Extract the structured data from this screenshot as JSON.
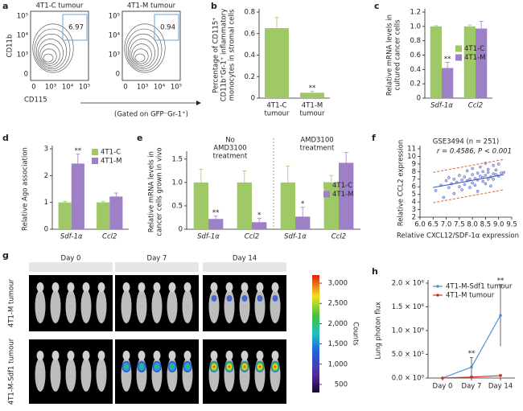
{
  "panel_labels": [
    "a",
    "b",
    "c",
    "d",
    "e",
    "f",
    "g",
    "h"
  ],
  "flow": {
    "titles": [
      "4T1-C tumour",
      "4T1-M tumour"
    ],
    "gates": [
      6.97,
      0.94
    ],
    "yticks": [
      "10⁵",
      "10⁴",
      "10³",
      "0"
    ],
    "xticks": [
      "0",
      "10³",
      "10⁴",
      "10⁵"
    ],
    "ylabel": "CD11b",
    "xlabel": "CD115",
    "note": "(Gated on GFP⁻Gr-1⁺)"
  },
  "imaging": {
    "days": [
      "Day 0",
      "Day 7",
      "Day 14"
    ],
    "rows": [
      "4T1-M tumour",
      "4T1-M-Sdf1 tumour"
    ],
    "colorbar": {
      "lim": [
        300,
        3200
      ],
      "ticks": [
        {
          "value": 3000,
          "label": "3,000"
        },
        {
          "value": 2500,
          "label": "2,500"
        },
        {
          "value": 2000,
          "label": "2,000"
        },
        {
          "value": 1500,
          "label": "1,500"
        },
        {
          "value": 1000,
          "label": "1,000"
        },
        500
      ],
      "label": "Counts"
    }
  },
  "chart_data": [
    {
      "type": "bar",
      "categories": [
        [
          "4T1-C",
          "tumour"
        ],
        [
          "4T1-M",
          "tumour"
        ]
      ],
      "ylabel": [
        "Percentage of CD115⁺",
        "CD11b⁺Gr-1⁺ inflammatory",
        "monocytes in stromal cells"
      ],
      "ylim": [
        0,
        0.8
      ],
      "yticks": [
        0,
        0.2,
        0.4,
        0.6,
        0.8
      ],
      "series": [
        {
          "color": "#9fc867",
          "values": [
            0.65,
            0.05
          ],
          "errors": [
            0.1,
            0.015
          ],
          "stars": [
            null,
            "**"
          ]
        }
      ]
    },
    {
      "type": "bar",
      "categories": [
        "Sdf-1α",
        "Ccl2"
      ],
      "category_style": "italic",
      "ylabel": [
        "Relative mRNA levels in",
        "cultured cancer cells"
      ],
      "ylim": [
        0,
        1.2
      ],
      "yticks": [
        0,
        0.2,
        0.4,
        0.6,
        0.8,
        {
          "value": 1,
          "label": "1.0"
        },
        1.2
      ],
      "legend": "center right",
      "series": [
        {
          "name": "4T1-C",
          "color": "#9fc867",
          "values": [
            1,
            1
          ],
          "errors": [
            0.01,
            0.02
          ]
        },
        {
          "name": "4T1-M",
          "color": "#9d80c6",
          "values": [
            0.42,
            0.97
          ],
          "errors": [
            0.08,
            0.1
          ],
          "stars": [
            "**",
            null
          ]
        }
      ]
    },
    {
      "type": "bar",
      "categories": [
        "Sdf-1α",
        "Ccl2"
      ],
      "category_style": "italic",
      "ylabel": [
        "Relative Ago association"
      ],
      "ylim": [
        0,
        3
      ],
      "yticks": [
        0,
        1,
        2,
        3
      ],
      "legend": "upper right",
      "series": [
        {
          "name": "4T1-C",
          "color": "#9fc867",
          "values": [
            1,
            1
          ],
          "errors": [
            0.04,
            0.03
          ]
        },
        {
          "name": "4T1-M",
          "color": "#9d80c6",
          "values": [
            2.45,
            1.22
          ],
          "errors": [
            0.35,
            0.13
          ],
          "stars": [
            "**",
            null
          ]
        }
      ]
    },
    {
      "type": "bar",
      "categories": [
        "Sdf-1α",
        "Ccl2",
        "Sdf-1α",
        "Ccl2"
      ],
      "category_style": "italic",
      "ylabel": [
        "Relative mRNA levels in",
        "cancer cells grown in vivo"
      ],
      "ylim": [
        0,
        1.6
      ],
      "yticks": [
        0,
        0.5,
        {
          "value": 1,
          "label": "1.0"
        },
        1.5
      ],
      "legend": "center right",
      "groups": [
        [
          "No",
          "AMD3100",
          "treatment"
        ],
        [
          "AMD3100",
          "treatment"
        ]
      ],
      "group_color": "#c0272d",
      "series": [
        {
          "name": "4T1-C",
          "color": "#9fc867",
          "values": [
            1,
            1,
            1,
            1
          ],
          "errors": [
            0.28,
            0.25,
            0.35,
            0.15
          ]
        },
        {
          "name": "4T1-M",
          "color": "#9d80c6",
          "values": [
            0.22,
            0.15,
            0.27,
            1.42
          ],
          "errors": [
            0.06,
            0.08,
            0.2,
            0.22
          ],
          "stars": [
            "**",
            "*",
            "*",
            null
          ]
        }
      ]
    },
    {
      "type": "scatter",
      "title": "GSE3494 (n = 251)",
      "annotation": "r = 0.4586, P < 0.001",
      "xlabel": "Relative CXCL12/SDF-1α expression",
      "ylabel": "Relative CCL2 expression",
      "tick_color": "#3a3aa0",
      "xlim": [
        6,
        9.5
      ],
      "ylim": [
        2,
        11
      ],
      "xticks": [
        {
          "value": 6,
          "label": "6.0"
        },
        6.5,
        {
          "value": 7,
          "label": "7.0"
        },
        7.5,
        {
          "value": 8,
          "label": "8.0"
        },
        8.5,
        {
          "value": 9,
          "label": "9.0"
        },
        9.5
      ],
      "yticks": [
        2,
        3,
        4,
        5,
        6,
        7,
        8,
        9,
        10,
        11
      ],
      "color": "#4a5ab0",
      "x": [
        6.6,
        6.8,
        6.9,
        7.0,
        7.1,
        7.1,
        7.2,
        7.3,
        7.3,
        7.4,
        7.5,
        7.5,
        7.6,
        7.6,
        7.7,
        7.7,
        7.8,
        7.8,
        7.9,
        7.9,
        8.0,
        8.0,
        8.0,
        8.1,
        8.1,
        8.2,
        8.2,
        8.2,
        8.3,
        8.3,
        8.4,
        8.4,
        8.4,
        8.5,
        8.5,
        8.5,
        8.6,
        8.6,
        8.6,
        8.7,
        8.7,
        8.8,
        8.8,
        8.8,
        8.9,
        8.9,
        9.0,
        9.0,
        9.1,
        9.2
      ],
      "y": [
        5.5,
        6.2,
        4.6,
        6.8,
        5.9,
        7.2,
        6.4,
        5.1,
        7.0,
        6.6,
        6.0,
        7.5,
        6.9,
        5.6,
        7.3,
        6.3,
        6.8,
        8.1,
        7.0,
        5.9,
        6.5,
        7.6,
        8.4,
        7.1,
        6.2,
        6.9,
        7.8,
        5.4,
        7.4,
        8.6,
        6.7,
        7.2,
        8.0,
        7.5,
        9.1,
        6.4,
        7.0,
        7.9,
        8.3,
        7.3,
        6.1,
        7.7,
        8.8,
        7.0,
        7.6,
        8.2,
        7.4,
        9.0,
        7.8,
        7.9
      ],
      "fit": {
        "x": [
          6.5,
          9.2
        ],
        "y": [
          5.9,
          7.6
        ],
        "color": "#3a4fc0"
      },
      "bands": [
        {
          "x": [
            6.5,
            9.2
          ],
          "y": [
            7.9,
            9.6
          ]
        },
        {
          "x": [
            6.5,
            9.2
          ],
          "y": [
            3.9,
            5.6
          ]
        }
      ],
      "band_color": "#e0603a"
    },
    {
      "type": "line",
      "categories": [
        "Day 0",
        "Day 7",
        "Day 14"
      ],
      "ylabel": [
        "Lung photon flux"
      ],
      "ylim": [
        0,
        2000000
      ],
      "legend": "upper left",
      "yticks": [
        {
          "value": 0,
          "label": "0.0 × 10⁰"
        },
        {
          "value": 500000,
          "label": "5.0 × 10⁵"
        },
        {
          "value": 1000000,
          "label": "1.0 × 10⁶"
        },
        {
          "value": 1500000,
          "label": "1.5 × 10⁶"
        },
        {
          "value": 2000000,
          "label": "2.0 × 10⁶"
        }
      ],
      "series": [
        {
          "name": "4T1-M-Sdf1 tumour",
          "color": "#4a8fd6",
          "values": [
            0,
            230000,
            1320000
          ],
          "errors": [
            0,
            200000,
            650000
          ],
          "stars": [
            null,
            "**",
            "**"
          ]
        },
        {
          "name": "4T1-M tumour",
          "color": "#d0302b",
          "values": [
            0,
            20000,
            50000
          ],
          "errors": [
            0,
            15000,
            20000
          ]
        }
      ]
    }
  ]
}
